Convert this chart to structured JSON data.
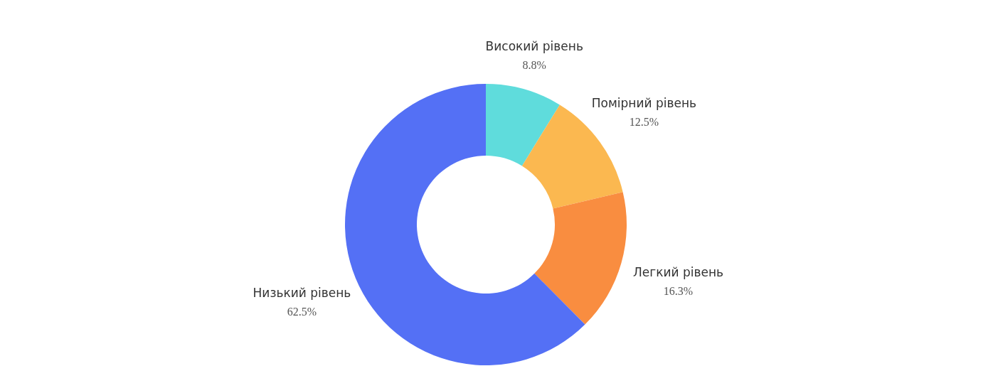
{
  "chart_data": {
    "type": "donut",
    "categories": [
      "Високий рівень",
      "Помірний рівень",
      "Легкий рівень",
      "Низький рівень"
    ],
    "values": [
      8.8,
      12.5,
      16.3,
      62.5
    ],
    "colors": [
      "#5fdcdc",
      "#fbb850",
      "#f98d40",
      "#5470f5"
    ],
    "value_labels": [
      "8.8%",
      "12.5%",
      "16.3%",
      "62.5%"
    ],
    "legend": false
  }
}
